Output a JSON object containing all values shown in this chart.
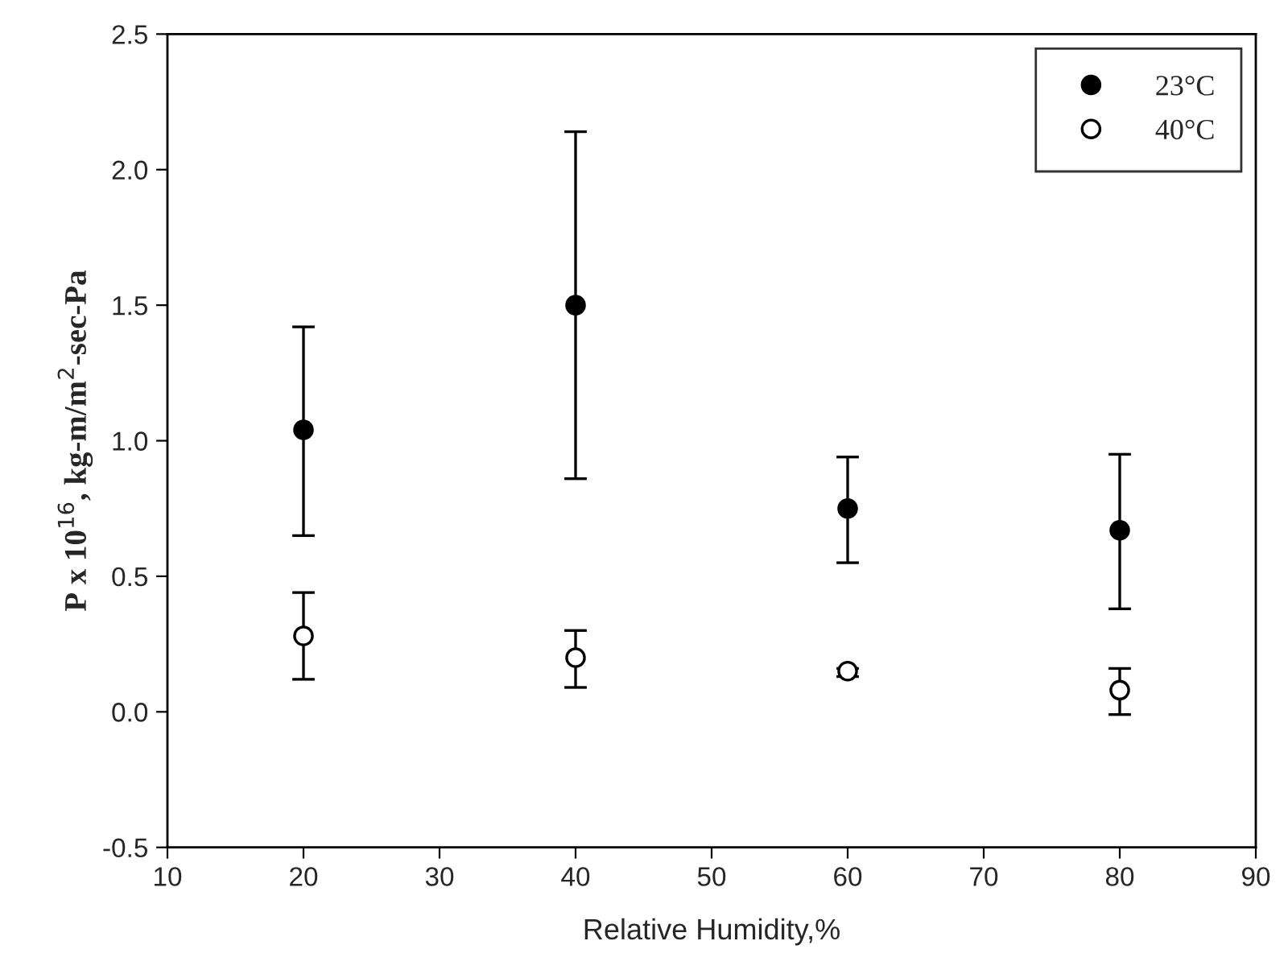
{
  "chart_data": {
    "type": "scatter",
    "ylabel": "P x 10$^{16}$, kg-m/m$^{2}$-sec-Pa",
    "xlabel": "Relative Humidity,%",
    "x": [
      20,
      40,
      60,
      80
    ],
    "series": [
      {
        "name": "23°C",
        "color": "#000000",
        "values": [
          1.04,
          1.5,
          0.75,
          0.67
        ],
        "errors": [
          [
            0.65,
            1.42
          ],
          [
            0.86,
            2.14
          ],
          [
            0.55,
            0.94
          ],
          [
            0.38,
            0.95
          ]
        ]
      },
      {
        "name": "40°C",
        "color": "#ffffff",
        "values": [
          0.28,
          0.2,
          0.15,
          0.08
        ],
        "errors": [
          [
            0.12,
            0.44
          ],
          [
            0.09,
            0.3
          ],
          [
            0.13,
            0.16
          ],
          [
            -0.01,
            0.16
          ]
        ]
      }
    ],
    "xlim": [
      10,
      90
    ],
    "xticks": [
      10,
      20,
      30,
      40,
      50,
      60,
      70,
      80,
      90
    ],
    "ylim": [
      -0.5,
      2.5
    ],
    "yticks": [
      -0.5,
      {
        "value": 0,
        "label": "0.0"
      },
      0.5,
      {
        "value": 1,
        "label": "1.0"
      },
      1.5,
      {
        "value": 2,
        "label": "2.0"
      },
      2.5
    ],
    "marker": "circle",
    "legend": "top right",
    "grid": false
  }
}
